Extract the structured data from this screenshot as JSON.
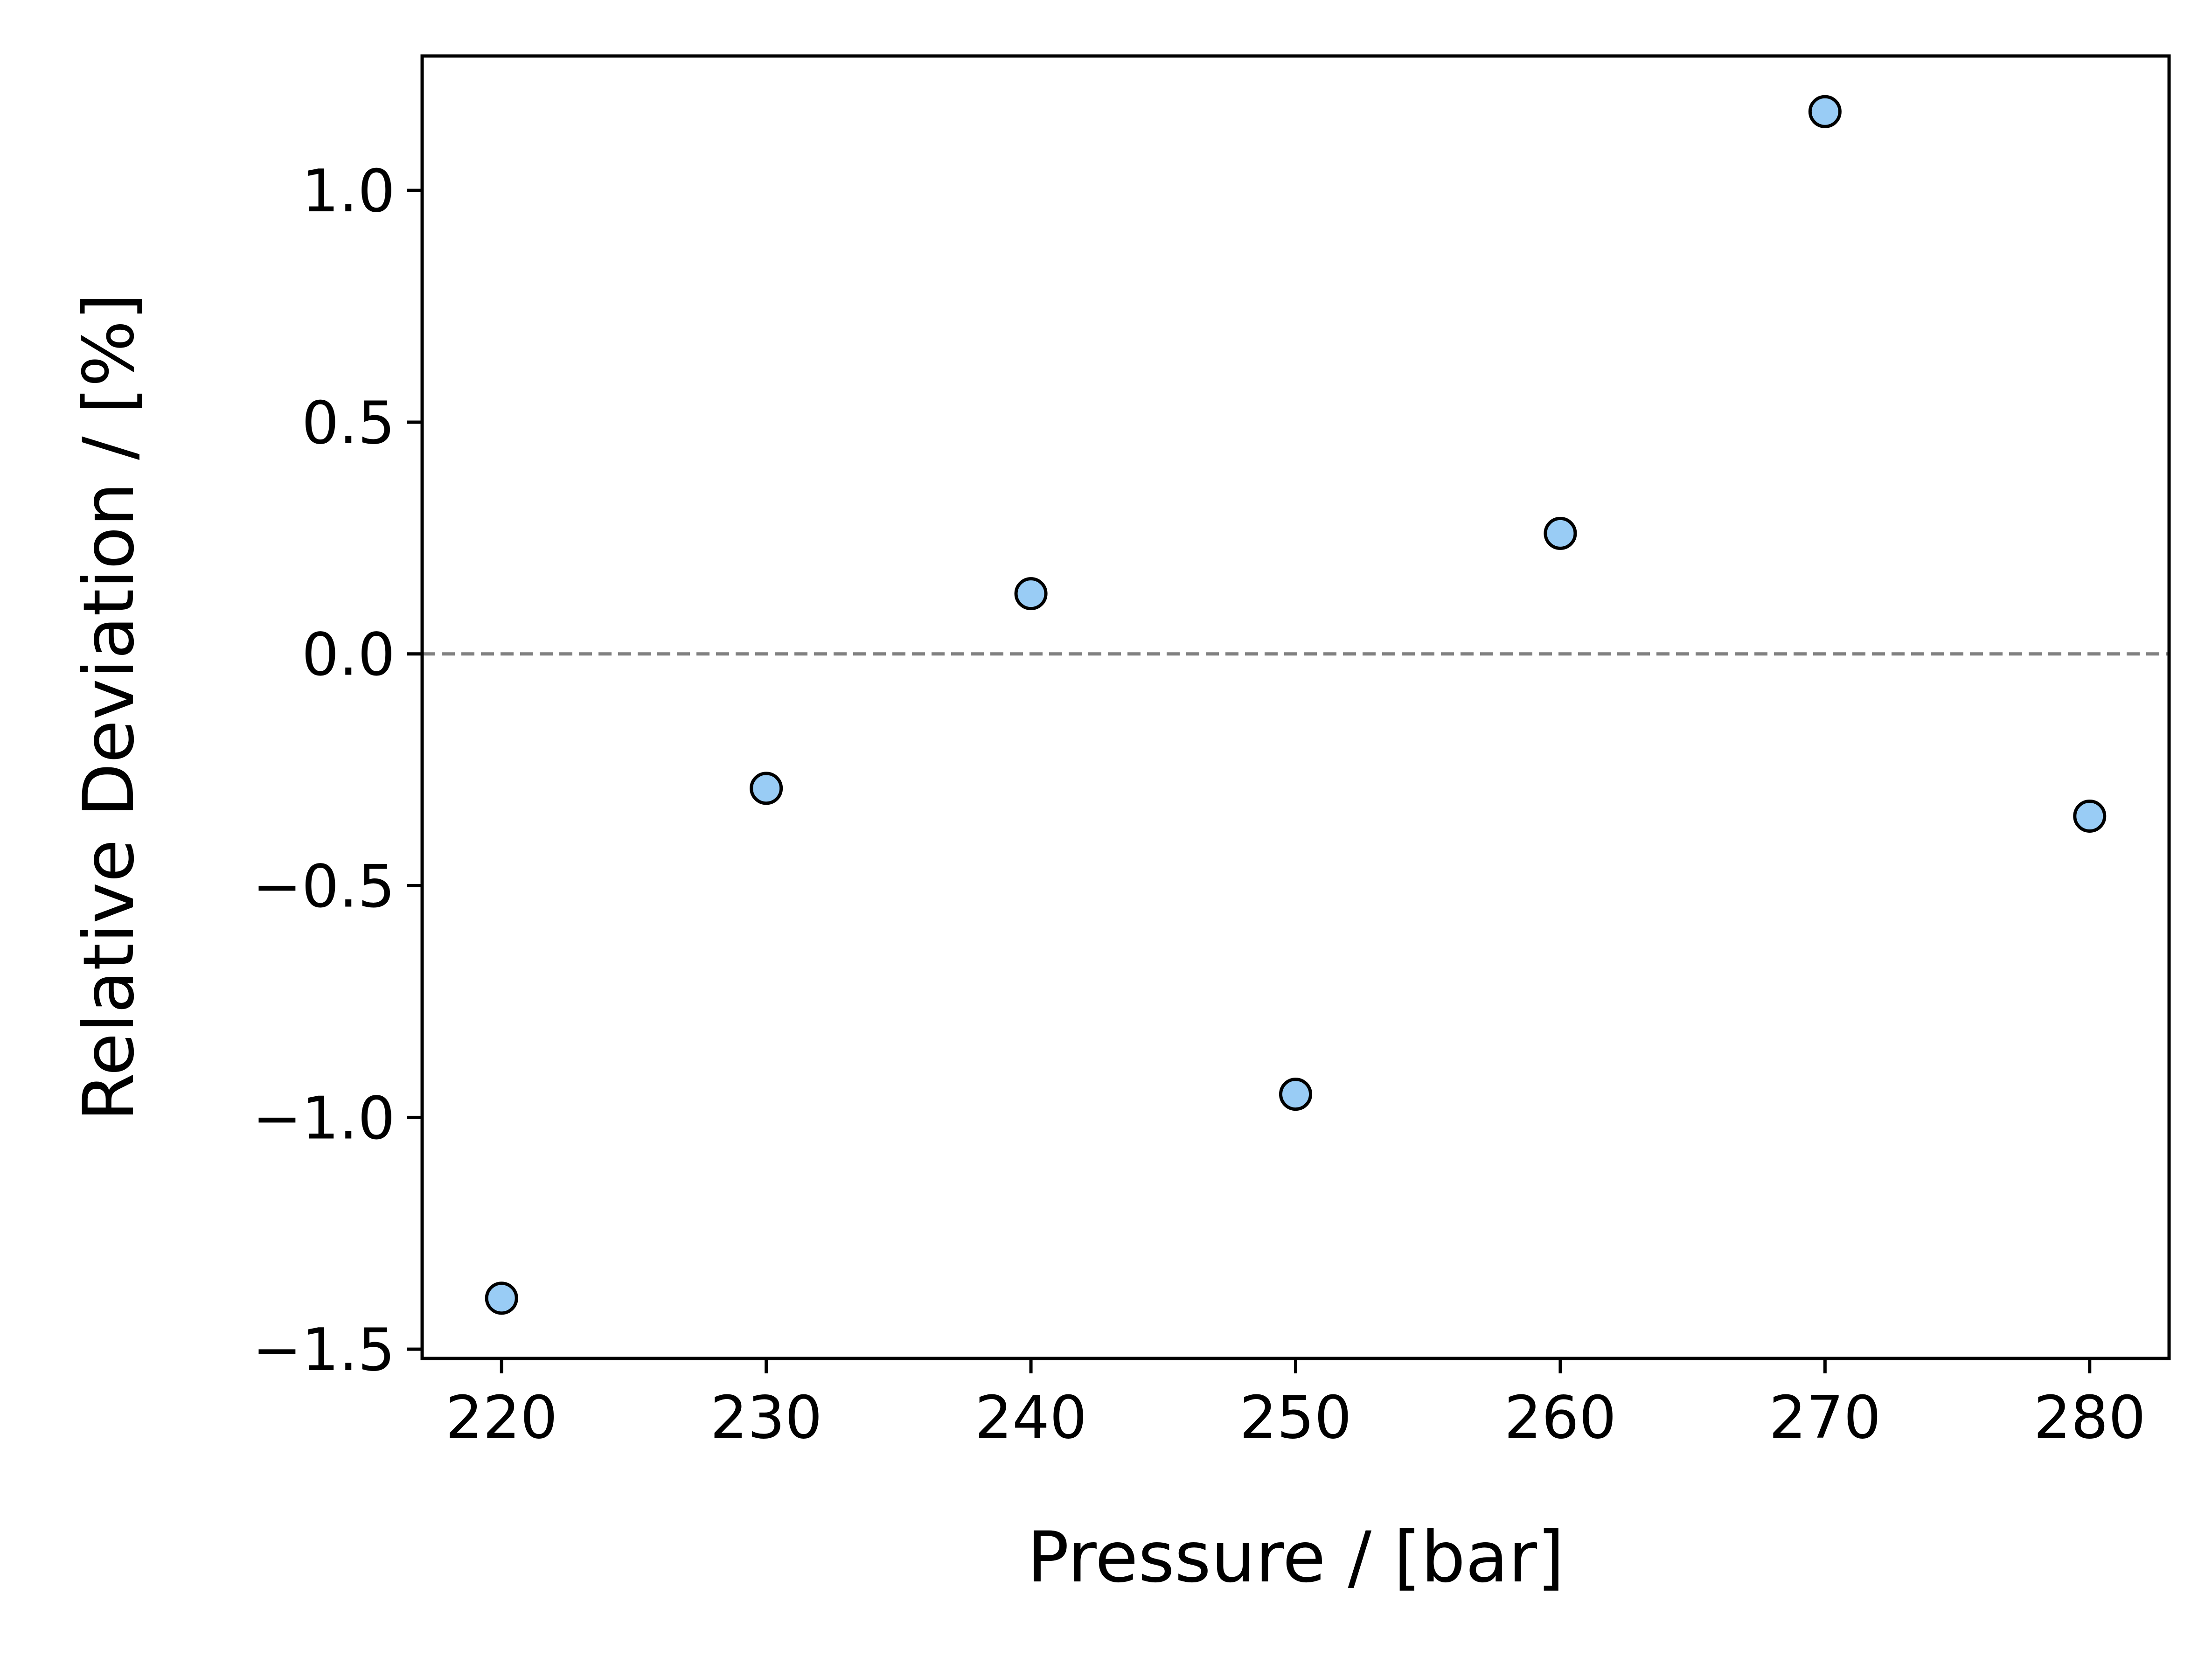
{
  "chart_data": {
    "type": "scatter",
    "title": "",
    "xlabel": "Pressure / [bar]",
    "ylabel": "Relative Deviation / [%]",
    "xlim": [
      217,
      283
    ],
    "ylim": [
      -1.52,
      1.29
    ],
    "xticks": [
      220,
      230,
      240,
      250,
      260,
      270,
      280
    ],
    "yticks": [
      -1.5,
      -1.0,
      -0.5,
      0.0,
      0.5,
      1.0
    ],
    "xtick_labels": [
      "220",
      "230",
      "240",
      "250",
      "260",
      "270",
      "280"
    ],
    "ytick_labels": [
      "−1.5",
      "−1.0",
      "−0.5",
      "0.0",
      "0.5",
      "1.0"
    ],
    "grid": false,
    "reference_line": {
      "y": 0.0,
      "style": "dashed",
      "color": "#808080"
    },
    "series": [
      {
        "x": [
          220,
          230,
          240,
          250,
          260,
          270,
          280
        ],
        "y": [
          -1.39,
          -0.29,
          0.13,
          -0.95,
          0.26,
          1.17,
          -0.35
        ],
        "marker_color": "#99ccf5",
        "edge_color": "#000000"
      }
    ]
  }
}
